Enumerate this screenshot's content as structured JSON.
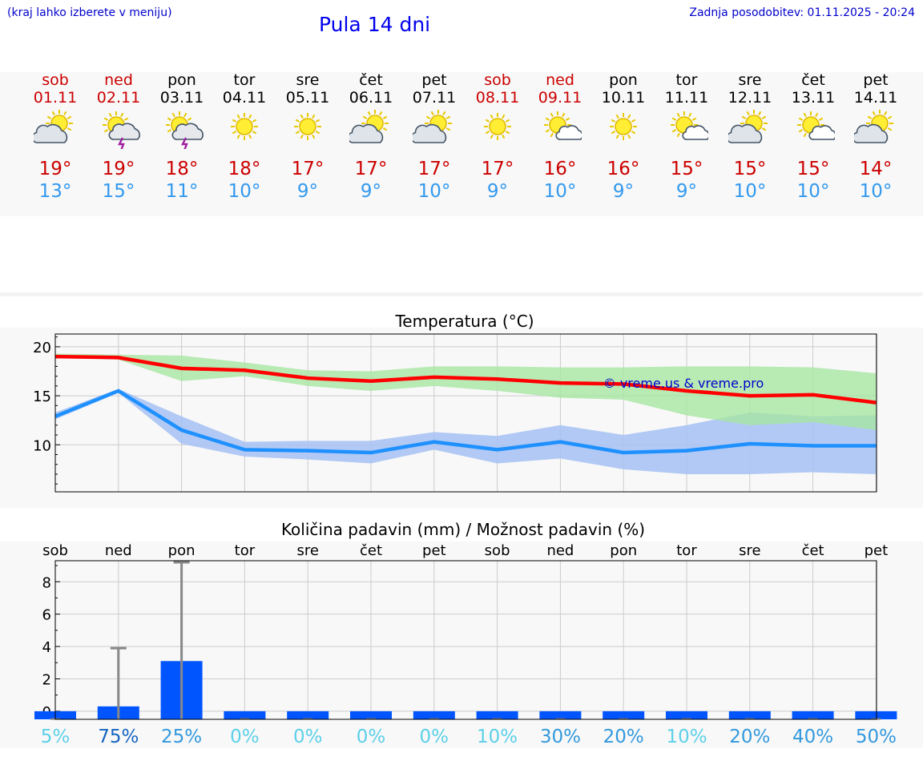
{
  "header": {
    "hint": "(kraj lahko izberete v meniju)",
    "title": "Pula 14 dni",
    "updated": "Zadnja posodobitev: 01.11.2025 - 20:24"
  },
  "colors": {
    "weekend": "#cc0000",
    "tmax": "#cc0000",
    "tmin": "#3399ee",
    "max_line": "#ff0000",
    "max_band": "#a8e6a3",
    "min_line": "#1e90ff",
    "min_band": "#a9c3f3",
    "bar": "#0055ff",
    "whisker": "#888888"
  },
  "days": [
    {
      "name": "sob",
      "date": "01.11",
      "weekend": true,
      "icon": "sun-cloud-icon",
      "tmax": "19°",
      "tmin": "13°",
      "rain_chance": "5%"
    },
    {
      "name": "ned",
      "date": "02.11",
      "weekend": true,
      "icon": "sun-storm-icon",
      "tmax": "19°",
      "tmin": "15°",
      "rain_chance": "75%"
    },
    {
      "name": "pon",
      "date": "03.11",
      "weekend": false,
      "icon": "sun-storm-icon",
      "tmax": "18°",
      "tmin": "11°",
      "rain_chance": "25%"
    },
    {
      "name": "tor",
      "date": "04.11",
      "weekend": false,
      "icon": "sun-icon",
      "tmax": "18°",
      "tmin": "10°",
      "rain_chance": "0%"
    },
    {
      "name": "sre",
      "date": "05.11",
      "weekend": false,
      "icon": "sun-icon",
      "tmax": "17°",
      "tmin": "9°",
      "rain_chance": "0%"
    },
    {
      "name": "čet",
      "date": "06.11",
      "weekend": false,
      "icon": "sun-cloud-icon",
      "tmax": "17°",
      "tmin": "9°",
      "rain_chance": "0%"
    },
    {
      "name": "pet",
      "date": "07.11",
      "weekend": false,
      "icon": "sun-cloud-icon",
      "tmax": "17°",
      "tmin": "10°",
      "rain_chance": "0%"
    },
    {
      "name": "sob",
      "date": "08.11",
      "weekend": true,
      "icon": "sun-icon",
      "tmax": "17°",
      "tmin": "9°",
      "rain_chance": "10%"
    },
    {
      "name": "ned",
      "date": "09.11",
      "weekend": true,
      "icon": "sun-small-cloud-icon",
      "tmax": "16°",
      "tmin": "10°",
      "rain_chance": "30%"
    },
    {
      "name": "pon",
      "date": "10.11",
      "weekend": false,
      "icon": "sun-icon",
      "tmax": "16°",
      "tmin": "9°",
      "rain_chance": "20%"
    },
    {
      "name": "tor",
      "date": "11.11",
      "weekend": false,
      "icon": "sun-small-cloud-icon",
      "tmax": "15°",
      "tmin": "9°",
      "rain_chance": "10%"
    },
    {
      "name": "sre",
      "date": "12.11",
      "weekend": false,
      "icon": "sun-cloud-icon",
      "tmax": "15°",
      "tmin": "10°",
      "rain_chance": "20%"
    },
    {
      "name": "čet",
      "date": "13.11",
      "weekend": false,
      "icon": "sun-small-cloud-icon",
      "tmax": "15°",
      "tmin": "10°",
      "rain_chance": "40%"
    },
    {
      "name": "pet",
      "date": "14.11",
      "weekend": false,
      "icon": "sun-cloud-icon",
      "tmax": "14°",
      "tmin": "10°",
      "rain_chance": "50%"
    }
  ],
  "chart_data": [
    {
      "type": "line",
      "title": "Temperatura (°C)",
      "watermark": "© vreme.us & vreme.pro",
      "xlabel": "",
      "ylabel": "",
      "ylim": [
        5.2,
        21.3
      ],
      "yticks": [
        10,
        15,
        20
      ],
      "grid": true,
      "series": [
        {
          "name": "max",
          "values": [
            19.0,
            18.9,
            17.8,
            17.6,
            16.8,
            16.5,
            16.9,
            16.7,
            16.3,
            16.2,
            15.5,
            15.0,
            15.1,
            14.3
          ],
          "band_high": [
            19.3,
            19.2,
            19.1,
            18.4,
            17.6,
            17.5,
            18.0,
            18.0,
            17.9,
            17.9,
            18.0,
            18.0,
            17.9,
            17.3
          ],
          "band_low": [
            18.9,
            18.7,
            16.5,
            17.0,
            16.0,
            15.5,
            16.0,
            15.5,
            14.8,
            14.6,
            13.0,
            12.0,
            12.3,
            11.5
          ]
        },
        {
          "name": "min",
          "values": [
            12.9,
            15.5,
            11.5,
            9.5,
            9.4,
            9.2,
            10.3,
            9.5,
            10.3,
            9.2,
            9.4,
            10.1,
            9.9,
            9.9
          ],
          "band_high": [
            13.3,
            15.7,
            12.9,
            10.3,
            10.4,
            10.4,
            11.3,
            10.9,
            12.0,
            11.0,
            12.0,
            13.3,
            12.9,
            13.0
          ],
          "band_low": [
            12.6,
            15.3,
            10.1,
            8.8,
            8.5,
            8.1,
            9.5,
            8.1,
            8.6,
            7.5,
            7.0,
            7.0,
            7.2,
            7.0
          ]
        }
      ]
    },
    {
      "type": "bar",
      "title": "Količina padavin (mm) / Možnost padavin (%)",
      "xlabel": "",
      "ylabel": "",
      "ylim": [
        -0.5,
        9.3
      ],
      "yticks": [
        0,
        2,
        4,
        6,
        8
      ],
      "grid": true,
      "values": [
        0,
        0.3,
        3.1,
        0,
        0,
        0,
        0,
        0,
        0,
        0,
        0,
        0,
        0,
        0
      ],
      "error_high": [
        0,
        3.9,
        9.2,
        0,
        0,
        0,
        0,
        0,
        0,
        0,
        0,
        0,
        0,
        0
      ]
    }
  ]
}
